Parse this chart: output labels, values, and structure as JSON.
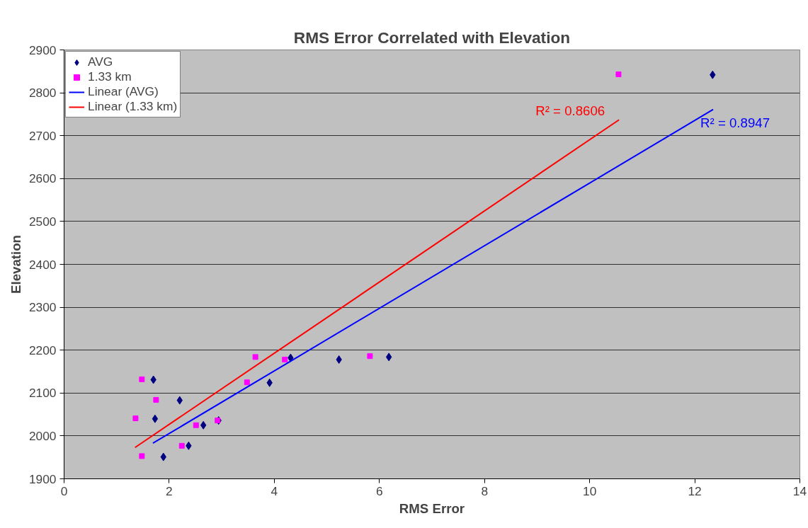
{
  "chart_data": {
    "type": "scatter",
    "title": "RMS Error Correlated with Elevation",
    "xlabel": "RMS Error",
    "ylabel": "Elevation",
    "xlim": [
      0,
      14
    ],
    "xticks": [
      0,
      2,
      4,
      6,
      8,
      10,
      12,
      14
    ],
    "ylim": [
      1900,
      2900
    ],
    "yticks": [
      1900,
      2000,
      2100,
      2200,
      2300,
      2400,
      2500,
      2600,
      2700,
      2800,
      2900
    ],
    "grid": "y",
    "legend": "top left",
    "series": [
      {
        "name": "AVG",
        "marker": "diamond",
        "color": "#000080",
        "x": [
          1.7,
          2.2,
          1.73,
          1.89,
          2.37,
          2.65,
          2.94,
          3.91,
          4.31,
          5.23,
          6.18,
          12.34
        ],
        "values": [
          2131,
          2083,
          2040,
          1951,
          1977,
          2025,
          2036,
          2124,
          2182,
          2178,
          2184,
          2842
        ]
      },
      {
        "name": "1.33 km",
        "marker": "square",
        "color": "#ff00ff",
        "x": [
          1.48,
          1.75,
          1.36,
          1.48,
          2.24,
          2.51,
          2.92,
          3.48,
          3.64,
          4.2,
          5.82,
          10.55
        ],
        "values": [
          2132,
          2084,
          2041,
          1953,
          1977,
          2025,
          2036,
          2125,
          2184,
          2178,
          2186,
          2843
        ]
      },
      {
        "name": "Linear (AVG)",
        "type": "line",
        "color": "#0000ff",
        "x": [
          1.69,
          12.35
        ],
        "values": [
          1983,
          2761
        ]
      },
      {
        "name": "Linear (1.33 km)",
        "type": "line",
        "color": "#ff0000",
        "x": [
          1.35,
          10.56
        ],
        "values": [
          1973,
          2737
        ]
      }
    ],
    "annotations": [
      {
        "text": "R² = 0.8947",
        "x": 12.35,
        "y": 2761
      },
      {
        "text": "R² = 0.8606",
        "x": 10.56,
        "y": 2737
      }
    ]
  }
}
